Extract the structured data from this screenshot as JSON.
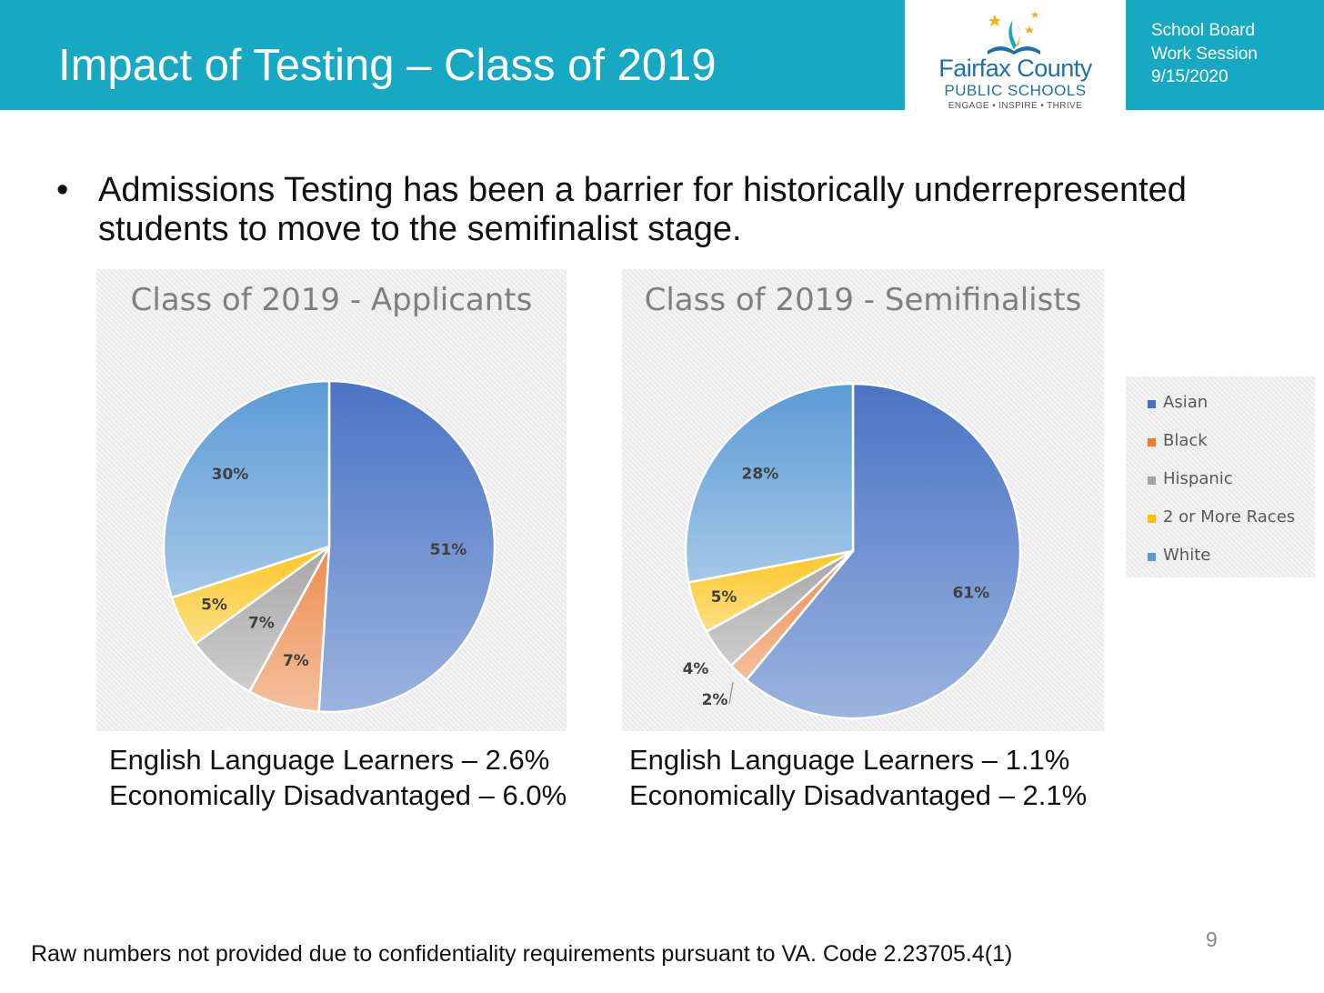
{
  "header": {
    "title": "Impact of Testing – Class of 2019",
    "logo": {
      "name": "Fairfax County",
      "sub": "PUBLIC SCHOOLS",
      "tagline": "ENGAGE • INSPIRE • THRIVE"
    },
    "meta": [
      "School Board",
      "Work Session",
      "9/15/2020"
    ]
  },
  "bullet": {
    "marker": "•",
    "text": "Admissions Testing has been a barrier for historically underrepresented students to move to the semifinalist stage."
  },
  "chart_data": [
    {
      "type": "pie",
      "title": "Class of 2019 - Applicants",
      "categories": [
        "Asian",
        "Black",
        "Hispanic",
        "2 or More Races",
        "White"
      ],
      "values": [
        51,
        7,
        7,
        5,
        30
      ],
      "labels": [
        "51%",
        "7%",
        "7%",
        "5%",
        "30%"
      ],
      "colors": [
        "#4a74c4",
        "#ed8c4f",
        "#a6a6a6",
        "#fcc624",
        "#5b9bd5"
      ],
      "legend": "right"
    },
    {
      "type": "pie",
      "title": "Class of 2019 - Semifinalists",
      "categories": [
        "Asian",
        "Black",
        "Hispanic",
        "2 or More Races",
        "White"
      ],
      "values": [
        61,
        2,
        4,
        5,
        28
      ],
      "labels": [
        "61%",
        "2%",
        "4%",
        "5%",
        "28%"
      ],
      "colors": [
        "#4a74c4",
        "#ed8c4f",
        "#a6a6a6",
        "#fcc624",
        "#5b9bd5"
      ],
      "legend": "right"
    }
  ],
  "legend": {
    "items": [
      {
        "label": "Asian",
        "color": "#4472c4"
      },
      {
        "label": "Black",
        "color": "#ed7d31"
      },
      {
        "label": "Hispanic",
        "color": "#a5a5a5"
      },
      {
        "label": "2 or More Races",
        "color": "#ffc000"
      },
      {
        "label": "White",
        "color": "#5b9bd5"
      }
    ]
  },
  "stats": {
    "applicants": {
      "ell": "English Language Learners – 2.6%",
      "econ": "Economically Disadvantaged  – 6.0%"
    },
    "semifinalists": {
      "ell": "English Language Learners – 1.1%",
      "econ": "Economically Disadvantaged – 2.1%"
    }
  },
  "footnote": "Raw numbers not provided due to confidentiality requirements pursuant to VA. Code 2.23705.4(1)",
  "page_number": "9"
}
